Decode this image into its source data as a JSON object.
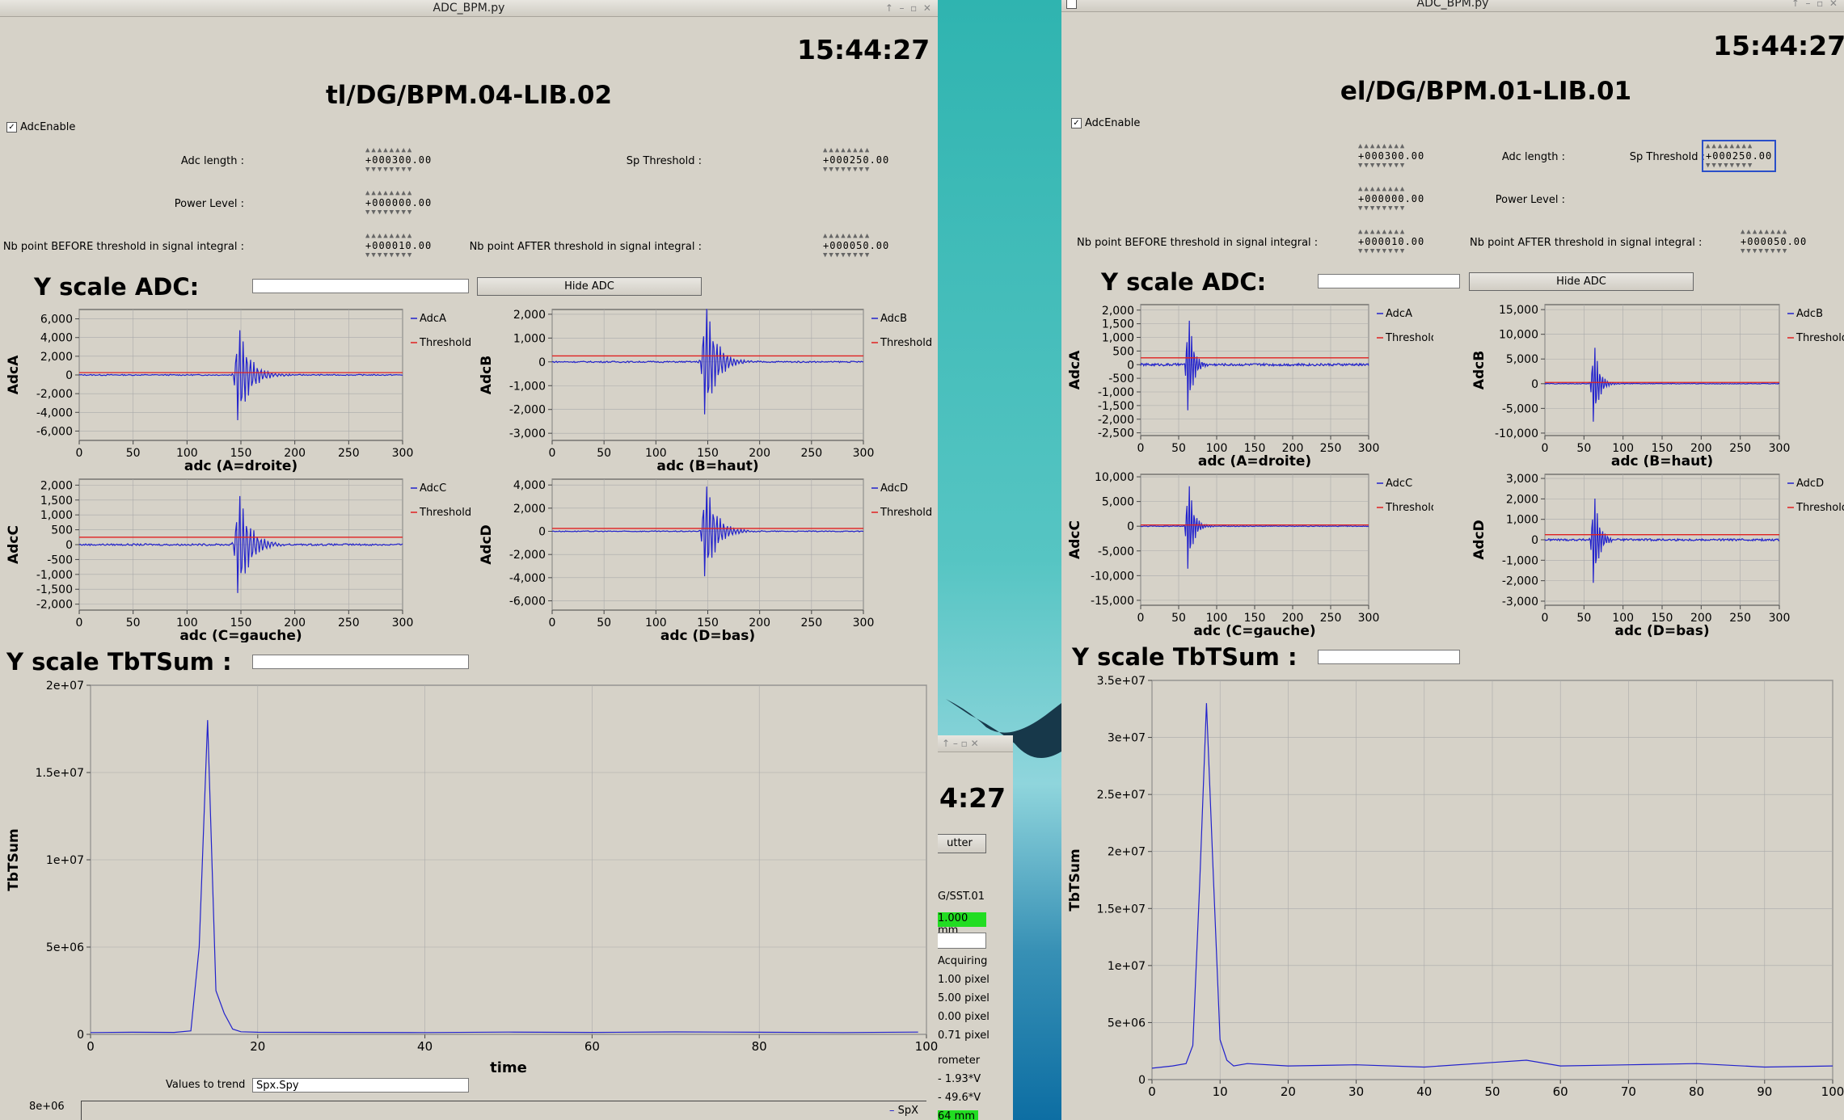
{
  "windows": [
    {
      "title": "ADC_BPM.py",
      "clock": "15:44:27",
      "device": "tl/DG/BPM.04-LIB.02",
      "adc_enable_label": "AdcEnable",
      "params": {
        "adc_length_label": "Adc length :",
        "adc_length": "+000300.00",
        "sp_threshold_label": "Sp Threshold :",
        "sp_threshold": "+000250.00",
        "power_level_label": "Power Level :",
        "power_level": "+000000.00",
        "nb_before_label": "Nb point BEFORE threshold in signal integral :",
        "nb_before": "+000010.00",
        "nb_after_label": "Nb point AFTER threshold in signal integral :",
        "nb_after": "+000050.00"
      },
      "y_scale_adc_label": "Y scale ADC:",
      "hide_adc_label": "Hide ADC",
      "y_scale_tbt_label": "Y scale TbTSum :",
      "values_to_trend_label": "Values to trend",
      "values_to_trend": "Spx.Spy",
      "trend_ytick": "8e+06",
      "trend_legend": "SpX"
    },
    {
      "title": "ADC_BPM.py",
      "clock": "15:44:27",
      "device": "el/DG/BPM.01-LIB.01",
      "adc_enable_label": "AdcEnable",
      "params": {
        "adc_length_label": "Adc length :",
        "adc_length": "+000300.00",
        "sp_threshold_label": "Sp Threshold :",
        "sp_threshold": "+000250.00",
        "power_level_label": "Power Level :",
        "power_level": "+000000.00",
        "nb_before_label": "Nb point BEFORE threshold in signal integral :",
        "nb_before": "+000010.00",
        "nb_after_label": "Nb point AFTER threshold in signal integral :",
        "nb_after": "+000050.00"
      },
      "y_scale_adc_label": "Y scale ADC:",
      "hide_adc_label": "Hide ADC",
      "y_scale_tbt_label": "Y scale TbTSum :"
    }
  ],
  "background_window": {
    "clock_fragment": "4:27",
    "button_fragment": "utter",
    "device_fragment": "G/SST.01",
    "green_value": "1.000 mm",
    "lines": [
      "Acquiring",
      "1.00 pixel",
      "5.00 pixel",
      "0.00 pixel",
      "0.71 pixel",
      "rometer",
      "- 1.93*V",
      "- 49.6*V"
    ],
    "green_value2": "64 mm"
  },
  "chart_data": [
    {
      "id": "w0-adcA",
      "type": "line",
      "ylabel": "AdcA",
      "xlabel": "adc  (A=droite)",
      "xlim": [
        0,
        300
      ],
      "ylim": [
        -7000,
        7000
      ],
      "yticks": [
        6000,
        4000,
        2000,
        0,
        -2000,
        -4000,
        -6000
      ],
      "ytick_labels": [
        "6,000",
        "4,000",
        "2,000",
        "0",
        "-2,000",
        "-4,000",
        "-6,000"
      ],
      "xticks": [
        0,
        50,
        100,
        150,
        200,
        250,
        300
      ],
      "threshold": 250,
      "burst_center": 148,
      "burst_amp": 5600,
      "burst_decay": 22,
      "noise": 120,
      "legend": [
        "AdcA",
        "Threshold"
      ]
    },
    {
      "id": "w0-adcB",
      "type": "line",
      "ylabel": "AdcB",
      "xlabel": "adc  (B=haut)",
      "xlim": [
        0,
        300
      ],
      "ylim": [
        -3300,
        2200
      ],
      "yticks": [
        2000,
        1000,
        0,
        -1000,
        -2000,
        -3000
      ],
      "ytick_labels": [
        "2,000",
        "1,000",
        "0",
        "-1,000",
        "-2,000",
        "-3,000"
      ],
      "xticks": [
        0,
        50,
        100,
        150,
        200,
        250,
        300
      ],
      "threshold": 250,
      "burst_center": 148,
      "burst_amp": 2600,
      "burst_decay": 22,
      "noise": 60,
      "legend": [
        "AdcB",
        "Threshold"
      ]
    },
    {
      "id": "w0-adcC",
      "type": "line",
      "ylabel": "AdcC",
      "xlabel": "adc  (C=gauche)",
      "xlim": [
        0,
        300
      ],
      "ylim": [
        -2200,
        2200
      ],
      "yticks": [
        2000,
        1500,
        1000,
        500,
        0,
        -500,
        -1000,
        -1500,
        -2000
      ],
      "ytick_labels": [
        "2,000",
        "1,500",
        "1,000",
        "500",
        "0",
        "-500",
        "-1,000",
        "-1,500",
        "-2,000"
      ],
      "xticks": [
        0,
        50,
        100,
        150,
        200,
        250,
        300
      ],
      "threshold": 250,
      "burst_center": 148,
      "burst_amp": 1900,
      "burst_decay": 22,
      "noise": 60,
      "legend": [
        "AdcC",
        "Threshold"
      ]
    },
    {
      "id": "w0-adcD",
      "type": "line",
      "ylabel": "AdcD",
      "xlabel": "adc  (D=bas)",
      "xlim": [
        0,
        300
      ],
      "ylim": [
        -6800,
        4500
      ],
      "yticks": [
        4000,
        2000,
        0,
        -2000,
        -4000,
        -6000
      ],
      "ytick_labels": [
        "4,000",
        "2,000",
        "0",
        "-2,000",
        "-4,000",
        "-6,000"
      ],
      "xticks": [
        0,
        50,
        100,
        150,
        200,
        250,
        300
      ],
      "threshold": 250,
      "burst_center": 148,
      "burst_amp": 4500,
      "burst_decay": 22,
      "noise": 80,
      "legend": [
        "AdcD",
        "Threshold"
      ]
    },
    {
      "id": "w0-tbt",
      "type": "line",
      "ylabel": "TbTSum",
      "xlabel": "time",
      "xlim": [
        0,
        100
      ],
      "ylim": [
        0,
        20000000
      ],
      "yticks": [
        0,
        5000000,
        10000000,
        15000000,
        20000000
      ],
      "ytick_labels": [
        "0",
        "5e+06",
        "1e+07",
        "1.5e+07",
        "2e+07"
      ],
      "xticks": [
        0,
        20,
        40,
        60,
        80,
        100
      ],
      "x": [
        0,
        5,
        10,
        12,
        13,
        14,
        15,
        16,
        17,
        18,
        20,
        30,
        40,
        50,
        60,
        70,
        80,
        90,
        99
      ],
      "y": [
        100000,
        120000,
        110000,
        200000,
        5000000,
        18000000,
        2500000,
        1200000,
        300000,
        150000,
        120000,
        110000,
        100000,
        130000,
        110000,
        140000,
        120000,
        100000,
        130000
      ]
    },
    {
      "id": "w1-adcA",
      "type": "line",
      "ylabel": "AdcA",
      "xlabel": "adc  (A=droite)",
      "xlim": [
        0,
        300
      ],
      "ylim": [
        -2600,
        2200
      ],
      "yticks": [
        2000,
        1500,
        1000,
        500,
        0,
        -500,
        -1000,
        -1500,
        -2000,
        -2500
      ],
      "ytick_labels": [
        "2,000",
        "1,500",
        "1,000",
        "500",
        "0",
        "-500",
        "-1,000",
        "-1,500",
        "-2,000",
        "-2,500"
      ],
      "xticks": [
        0,
        50,
        100,
        150,
        200,
        250,
        300
      ],
      "threshold": 250,
      "burst_center": 63,
      "burst_amp": 2000,
      "burst_decay": 14,
      "noise": 90,
      "legend": [
        "AdcA",
        "Threshold"
      ]
    },
    {
      "id": "w1-adcB",
      "type": "line",
      "ylabel": "AdcB",
      "xlabel": "adc  (B=haut)",
      "xlim": [
        0,
        300
      ],
      "ylim": [
        -10500,
        16000
      ],
      "yticks": [
        15000,
        10000,
        5000,
        0,
        -5000,
        -10000
      ],
      "ytick_labels": [
        "15,000",
        "10,000",
        "5,000",
        "0",
        "-5,000",
        "-10,000"
      ],
      "xticks": [
        0,
        50,
        100,
        150,
        200,
        250,
        300
      ],
      "threshold": 250,
      "burst_center": 63,
      "burst_amp": 9000,
      "burst_decay": 14,
      "noise": 150,
      "legend": [
        "AdcB",
        "Threshold"
      ]
    },
    {
      "id": "w1-adcC",
      "type": "line",
      "ylabel": "AdcC",
      "xlabel": "adc  (C=gauche)",
      "xlim": [
        0,
        300
      ],
      "ylim": [
        -16000,
        10500
      ],
      "yticks": [
        10000,
        5000,
        0,
        -5000,
        -10000,
        -15000
      ],
      "ytick_labels": [
        "10,000",
        "5,000",
        "0",
        "-5,000",
        "-10,000",
        "-15,000"
      ],
      "xticks": [
        0,
        50,
        100,
        150,
        200,
        250,
        300
      ],
      "threshold": 250,
      "burst_center": 63,
      "burst_amp": 10000,
      "burst_decay": 14,
      "noise": 150,
      "legend": [
        "AdcC",
        "Threshold"
      ]
    },
    {
      "id": "w1-adcD",
      "type": "line",
      "ylabel": "AdcD",
      "xlabel": "adc  (D=bas)",
      "xlim": [
        0,
        300
      ],
      "ylim": [
        -3200,
        3200
      ],
      "yticks": [
        3000,
        2000,
        1000,
        0,
        -1000,
        -2000,
        -3000
      ],
      "ytick_labels": [
        "3,000",
        "2,000",
        "1,000",
        "0",
        "-1,000",
        "-2,000",
        "-3,000"
      ],
      "xticks": [
        0,
        50,
        100,
        150,
        200,
        250,
        300
      ],
      "threshold": 250,
      "burst_center": 63,
      "burst_amp": 2500,
      "burst_decay": 14,
      "noise": 100,
      "legend": [
        "AdcD",
        "Threshold"
      ]
    },
    {
      "id": "w1-tbt",
      "type": "line",
      "ylabel": "TbTSum",
      "xlabel": "",
      "xlim": [
        0,
        100
      ],
      "ylim": [
        0,
        35000000
      ],
      "yticks": [
        0,
        5000000,
        10000000,
        15000000,
        20000000,
        25000000,
        30000000,
        35000000
      ],
      "ytick_labels": [
        "0",
        "5e+06",
        "1e+07",
        "1.5e+07",
        "2e+07",
        "2.5e+07",
        "3e+07",
        "3.5e+07"
      ],
      "xticks": [
        0,
        10,
        20,
        30,
        40,
        50,
        60,
        70,
        80,
        90,
        100
      ],
      "x": [
        0,
        3,
        5,
        6,
        7,
        8,
        9,
        10,
        11,
        12,
        14,
        20,
        30,
        40,
        50,
        55,
        60,
        70,
        80,
        90,
        100
      ],
      "y": [
        1000000,
        1200000,
        1400000,
        3000000,
        17000000,
        33000000,
        18000000,
        3500000,
        1700000,
        1200000,
        1400000,
        1200000,
        1300000,
        1100000,
        1500000,
        1700000,
        1200000,
        1300000,
        1400000,
        1100000,
        1200000
      ]
    }
  ]
}
